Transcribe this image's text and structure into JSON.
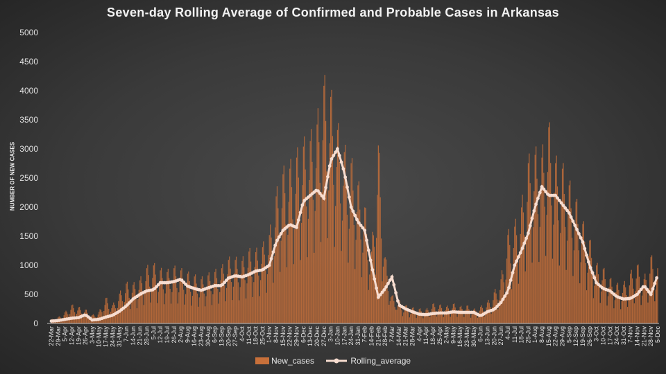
{
  "chart_data": {
    "type": "bar",
    "title": "Seven-day Rolling Average of Confirmed and Probable Cases in Arkansas",
    "xlabel": "",
    "ylabel": "NUMBER OF NEW CASES",
    "ylim": [
      0,
      5000
    ],
    "yticks": [
      "0",
      "500",
      "1000",
      "1500",
      "2000",
      "2500",
      "3000",
      "3500",
      "4000",
      "4500",
      "5000"
    ],
    "xtick_labels": [
      "22-Mar",
      "29-Mar",
      "5-Apr",
      "12-Apr",
      "19-Apr",
      "26-Apr",
      "3-May",
      "10-May",
      "17-May",
      "24-May",
      "31-May",
      "7-Jun",
      "14-Jun",
      "21-Jun",
      "28-Jun",
      "5-Jul",
      "12-Jul",
      "19-Jul",
      "26-Jul",
      "2-Aug",
      "9-Aug",
      "16-Aug",
      "23-Aug",
      "30-Aug",
      "6-Sep",
      "13-Sep",
      "20-Sep",
      "27-Sep",
      "4-Oct",
      "11-Oct",
      "18-Oct",
      "25-Oct",
      "1-Nov",
      "8-Nov",
      "15-Nov",
      "22-Nov",
      "29-Nov",
      "6-Dec",
      "13-Dec",
      "20-Dec",
      "27-Dec",
      "3-Jan",
      "10-Jan",
      "17-Jan",
      "24-Jan",
      "31-Jan",
      "7-Feb",
      "14-Feb",
      "21-Feb",
      "28-Feb",
      "7-Mar",
      "14-Mar",
      "21-Mar",
      "28-Mar",
      "4-Apr",
      "11-Apr",
      "18-Apr",
      "25-Apr",
      "2-May",
      "9-May",
      "16-May",
      "23-May",
      "30-May",
      "6-Jun",
      "13-Jun",
      "20-Jun",
      "27-Jun",
      "4-Jul",
      "11-Jul",
      "18-Jul",
      "25-Jul",
      "1-Aug",
      "8-Aug",
      "15-Aug",
      "22-Aug",
      "29-Aug",
      "5-Sep",
      "12-Sep",
      "19-Sep",
      "26-Sep",
      "3-Oct",
      "10-Oct",
      "17-Oct",
      "24-Oct",
      "31-Oct",
      "7-Nov",
      "14-Nov",
      "21-Nov",
      "28-Nov",
      "5-Dec"
    ],
    "weekly_rolling_average": [
      40,
      50,
      70,
      90,
      100,
      150,
      60,
      70,
      110,
      140,
      210,
      300,
      420,
      500,
      560,
      580,
      700,
      700,
      720,
      760,
      640,
      600,
      570,
      610,
      650,
      650,
      780,
      820,
      800,
      840,
      900,
      920,
      1000,
      1400,
      1600,
      1700,
      1650,
      2100,
      2200,
      2300,
      2150,
      2800,
      3000,
      2600,
      2000,
      1750,
      1600,
      1000,
      450,
      600,
      800,
      320,
      250,
      200,
      160,
      150,
      170,
      180,
      180,
      200,
      190,
      190,
      190,
      130,
      200,
      240,
      360,
      550,
      1000,
      1250,
      1550,
      2000,
      2350,
      2200,
      2200,
      2050,
      1900,
      1650,
      1400,
      1000,
      700,
      600,
      560,
      460,
      420,
      430,
      500,
      650,
      500,
      830
    ],
    "new_cases_weekly_peak": [
      70,
      110,
      200,
      330,
      290,
      250,
      150,
      210,
      460,
      330,
      540,
      720,
      700,
      780,
      1000,
      1050,
      960,
      930,
      1000,
      960,
      900,
      850,
      800,
      870,
      930,
      1000,
      1150,
      1150,
      1130,
      1300,
      1290,
      1380,
      1600,
      2300,
      2700,
      2800,
      3000,
      3200,
      3300,
      3600,
      4300,
      4100,
      3500,
      3100,
      2900,
      2500,
      2100,
      1300,
      3220,
      1200,
      500,
      400,
      320,
      280,
      260,
      250,
      350,
      330,
      300,
      350,
      300,
      320,
      250,
      300,
      380,
      560,
      800,
      1600,
      1750,
      2100,
      2900,
      3050,
      3000,
      3550,
      2900,
      2800,
      2500,
      2200,
      1800,
      1500,
      1050,
      980,
      800,
      700,
      700,
      900,
      1050,
      800,
      1200,
      1000
    ],
    "series": [
      {
        "name": "New_cases",
        "color": "#c8703a"
      },
      {
        "name": "Rolling_average",
        "color": "#f7ddd0"
      }
    ],
    "legend_position": "bottom",
    "grid": false
  }
}
